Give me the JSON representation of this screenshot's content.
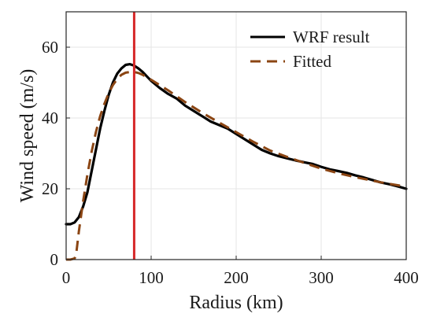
{
  "chart_data": {
    "type": "line",
    "title": "",
    "xlabel": "Radius (km)",
    "ylabel": "Wind speed (m/s)",
    "xlim": [
      0,
      400
    ],
    "ylim": [
      0,
      70
    ],
    "xticks": [
      0,
      100,
      200,
      300,
      400
    ],
    "yticks": [
      0,
      20,
      40,
      60
    ],
    "grid": true,
    "legend_position": "top-right",
    "vertical_marker": {
      "x": 80,
      "color": "#d62728"
    },
    "series": [
      {
        "name": "WRF result",
        "style": "solid",
        "color": "#000000",
        "x": [
          0,
          5,
          10,
          15,
          20,
          25,
          30,
          35,
          40,
          45,
          50,
          55,
          60,
          65,
          70,
          75,
          80,
          85,
          90,
          100,
          110,
          120,
          130,
          140,
          150,
          160,
          170,
          180,
          190,
          200,
          210,
          220,
          230,
          240,
          250,
          260,
          270,
          280,
          290,
          300,
          310,
          320,
          330,
          340,
          350,
          360,
          370,
          380,
          390,
          400
        ],
        "y": [
          10,
          10,
          10.5,
          12,
          15,
          19,
          25,
          31,
          37,
          42,
          46.5,
          50,
          52.5,
          54,
          55,
          55.2,
          54.8,
          54,
          53,
          50.5,
          48.5,
          46.8,
          45.5,
          43.5,
          42,
          40.5,
          39,
          38,
          37,
          35.5,
          34,
          32.5,
          31,
          30,
          29.2,
          28.6,
          28,
          27.5,
          27,
          26.2,
          25.5,
          25,
          24.5,
          23.8,
          23.2,
          22.5,
          21.8,
          21.3,
          20.7,
          20
        ]
      },
      {
        "name": "Fitted",
        "style": "dashed",
        "color": "#8b4513",
        "x": [
          0,
          5,
          10,
          12,
          15,
          20,
          25,
          30,
          35,
          40,
          45,
          50,
          55,
          60,
          65,
          70,
          75,
          80,
          85,
          90,
          100,
          120,
          140,
          160,
          180,
          200,
          220,
          240,
          260,
          280,
          300,
          320,
          340,
          360,
          380,
          400
        ],
        "y": [
          0,
          0,
          0.3,
          2,
          8,
          16.5,
          24,
          30.5,
          36,
          40.5,
          44,
          47,
          49.3,
          51,
          52.2,
          52.8,
          53,
          53,
          52.7,
          52.2,
          50.8,
          47.8,
          44.5,
          41.5,
          38.7,
          36,
          33.3,
          30.8,
          29,
          27.3,
          25.7,
          24.4,
          23.3,
          22.3,
          21.4,
          20.6
        ]
      }
    ]
  }
}
